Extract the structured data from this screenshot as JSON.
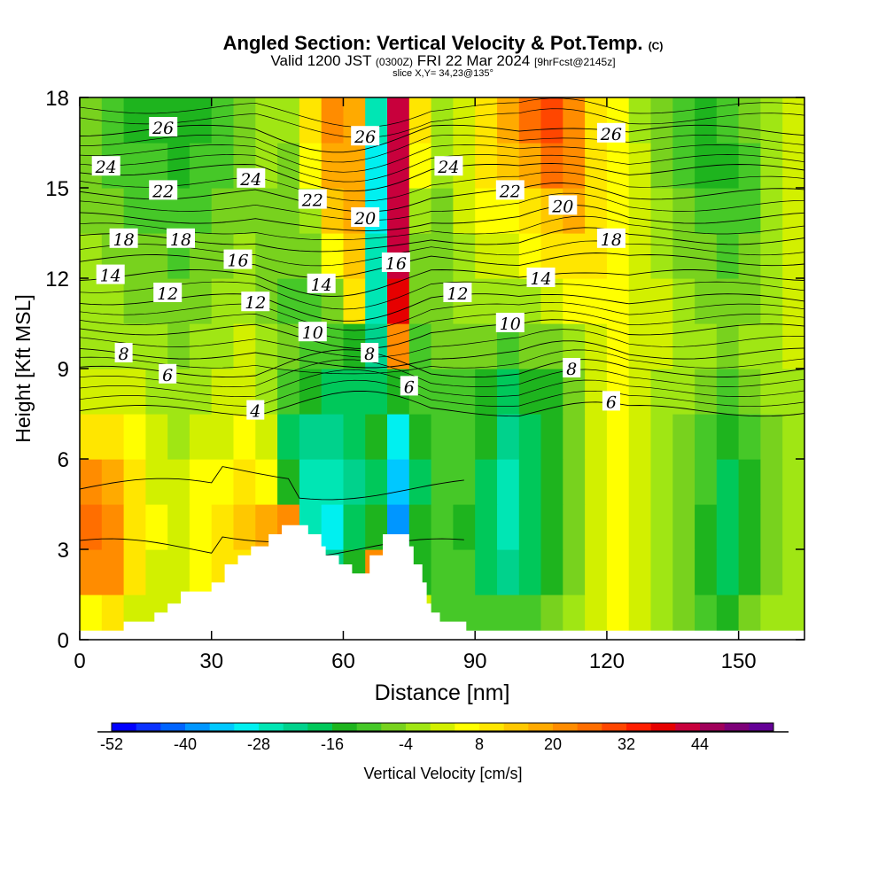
{
  "header": {
    "title": "Angled Section: Vertical Velocity & Pot.Temp.",
    "title_tag": "(C)",
    "valid_prefix": "Valid 1200 JST",
    "valid_z": "(0300Z)",
    "valid_date": "FRI 22 Mar 2024",
    "valid_fcst": "[9hrFcst@2145z]",
    "slice": "slice X,Y= 34,23@135°"
  },
  "chart_data": {
    "type": "heatmap",
    "xlabel": "Distance [nm]",
    "ylabel": "Height [Kft MSL]",
    "xlim": [
      0,
      165
    ],
    "ylim": [
      0,
      18
    ],
    "x_ticks": [
      0,
      30,
      60,
      90,
      120,
      150
    ],
    "y_ticks": [
      0,
      3,
      6,
      9,
      12,
      15,
      18
    ],
    "colorbar": {
      "title": "Vertical Velocity [cm/s]",
      "tick_labels": [
        "-52",
        "-40",
        "-28",
        "-16",
        "-4",
        "8",
        "20",
        "32",
        "44"
      ],
      "min": -52,
      "max": 56,
      "step": 4,
      "colors": [
        "#0000ff",
        "#0a32ff",
        "#0064ff",
        "#0096ff",
        "#00c8ff",
        "#00f0f0",
        "#00e6b4",
        "#00d28c",
        "#00c85a",
        "#1eb41e",
        "#46c828",
        "#78d21e",
        "#a0e614",
        "#d2f000",
        "#ffff00",
        "#ffe600",
        "#ffc800",
        "#ffaa00",
        "#ff8c00",
        "#ff6e00",
        "#ff4600",
        "#ff1e00",
        "#e60000",
        "#c8003c",
        "#a0005a",
        "#7d0078",
        "#640096"
      ]
    },
    "field_cells_cm_s": {
      "rows_height_kft": [
        0.75,
        2.25,
        3.75,
        5.25,
        6.75,
        8.25,
        9.75,
        11.25,
        12.75,
        14.25,
        15.75,
        17.25
      ],
      "cols_distance_nm": [
        2.5,
        7.5,
        12.5,
        17.5,
        22.5,
        27.5,
        32.5,
        37.5,
        42.5,
        47.5,
        52.5,
        57.5,
        62.5,
        67.5,
        72.5,
        77.5,
        82.5,
        87.5,
        92.5,
        97.5,
        102.5,
        107.5,
        112.5,
        117.5,
        122.5,
        127.5,
        132.5,
        137.5,
        142.5,
        147.5,
        152.5,
        157.5,
        162.5
      ],
      "values": [
        [
          4,
          8,
          0,
          0,
          2,
          4,
          6,
          8,
          10,
          8,
          2,
          -12,
          -14,
          4,
          22,
          0,
          -10,
          -10,
          -12,
          -12,
          -10,
          -8,
          -4,
          0,
          4,
          2,
          -2,
          -6,
          -10,
          -14,
          -8,
          -4,
          -2
        ],
        [
          20,
          22,
          8,
          2,
          2,
          4,
          8,
          10,
          14,
          16,
          -20,
          -24,
          -16,
          20,
          -40,
          -14,
          -10,
          -12,
          -18,
          -22,
          -18,
          -14,
          -6,
          2,
          4,
          0,
          -4,
          -8,
          -14,
          -20,
          -14,
          -6,
          -2
        ],
        [
          24,
          22,
          10,
          4,
          2,
          6,
          10,
          14,
          16,
          20,
          -28,
          -30,
          -20,
          -14,
          -40,
          -16,
          -10,
          -14,
          -20,
          -28,
          -20,
          -16,
          -8,
          2,
          4,
          0,
          -4,
          -8,
          -14,
          -20,
          -16,
          -8,
          -4
        ],
        [
          20,
          16,
          8,
          2,
          0,
          4,
          6,
          8,
          6,
          -14,
          -28,
          -28,
          -24,
          -18,
          -36,
          -18,
          -10,
          -12,
          -18,
          -26,
          -18,
          -14,
          -6,
          2,
          4,
          0,
          -4,
          -8,
          -12,
          -18,
          -14,
          -8,
          -4
        ],
        [
          10,
          8,
          4,
          0,
          -2,
          0,
          2,
          4,
          0,
          -18,
          -22,
          -24,
          -20,
          -16,
          -30,
          -16,
          -12,
          -12,
          -16,
          -24,
          -18,
          -14,
          -6,
          2,
          4,
          0,
          -2,
          -6,
          -10,
          -14,
          -12,
          -6,
          -4
        ],
        [
          0,
          0,
          0,
          -2,
          -4,
          -2,
          0,
          2,
          -2,
          -12,
          -16,
          -20,
          -18,
          -20,
          -14,
          -12,
          -10,
          -10,
          -14,
          -18,
          -16,
          -14,
          -6,
          2,
          4,
          0,
          -2,
          -4,
          -8,
          -10,
          -8,
          -4,
          -2
        ],
        [
          -2,
          -2,
          -4,
          -4,
          -6,
          -4,
          -2,
          0,
          -4,
          -8,
          -12,
          -10,
          -14,
          -24,
          20,
          -10,
          -8,
          -6,
          -8,
          -10,
          -8,
          -6,
          -2,
          2,
          4,
          2,
          0,
          -2,
          -4,
          -6,
          -4,
          -2,
          0
        ],
        [
          -4,
          -4,
          -6,
          -6,
          -8,
          -6,
          -4,
          -2,
          -6,
          -10,
          -10,
          -8,
          8,
          -26,
          36,
          -8,
          -6,
          -4,
          -4,
          -4,
          -2,
          0,
          4,
          6,
          4,
          2,
          0,
          -4,
          -6,
          -8,
          -6,
          -2,
          0
        ],
        [
          -4,
          -6,
          -8,
          -8,
          -10,
          -8,
          -6,
          -4,
          -6,
          -8,
          -8,
          6,
          12,
          -28,
          40,
          -6,
          -6,
          -2,
          0,
          2,
          4,
          8,
          10,
          8,
          4,
          2,
          -2,
          -6,
          -8,
          -10,
          -8,
          -4,
          0
        ],
        [
          -6,
          -8,
          -10,
          -10,
          -12,
          -10,
          -8,
          -6,
          -6,
          -8,
          -4,
          14,
          16,
          -30,
          40,
          -4,
          -6,
          0,
          4,
          6,
          10,
          14,
          16,
          10,
          4,
          0,
          -4,
          -8,
          -12,
          -12,
          -10,
          -4,
          0
        ],
        [
          -8,
          -10,
          -12,
          -12,
          -14,
          -12,
          -10,
          -8,
          -4,
          -6,
          4,
          18,
          18,
          -30,
          40,
          4,
          -4,
          2,
          8,
          12,
          18,
          24,
          20,
          10,
          4,
          0,
          -6,
          -10,
          -14,
          -14,
          -10,
          -4,
          0
        ],
        [
          -8,
          -12,
          -14,
          -14,
          -16,
          -14,
          -10,
          -8,
          -4,
          -4,
          8,
          20,
          16,
          -28,
          40,
          10,
          -2,
          2,
          10,
          16,
          24,
          28,
          22,
          10,
          4,
          -2,
          -8,
          -12,
          -14,
          -12,
          -8,
          -4,
          0
        ]
      ]
    },
    "terrain_kft": [
      [
        0,
        0.3
      ],
      [
        10,
        0.3
      ],
      [
        10,
        0.6
      ],
      [
        17,
        0.6
      ],
      [
        17,
        0.9
      ],
      [
        20,
        0.9
      ],
      [
        20,
        1.2
      ],
      [
        23,
        1.2
      ],
      [
        23,
        1.6
      ],
      [
        30,
        1.6
      ],
      [
        30,
        1.9
      ],
      [
        33,
        1.9
      ],
      [
        33,
        2.5
      ],
      [
        36,
        2.5
      ],
      [
        36,
        2.8
      ],
      [
        39,
        2.8
      ],
      [
        39,
        3.1
      ],
      [
        43,
        3.1
      ],
      [
        43,
        3.5
      ],
      [
        46,
        3.5
      ],
      [
        46,
        3.8
      ],
      [
        52,
        3.8
      ],
      [
        52,
        3.5
      ],
      [
        55,
        3.5
      ],
      [
        55,
        3.1
      ],
      [
        56,
        3.1
      ],
      [
        56,
        2.8
      ],
      [
        59,
        2.8
      ],
      [
        59,
        2.5
      ],
      [
        62,
        2.5
      ],
      [
        62,
        2.2
      ],
      [
        66,
        2.2
      ],
      [
        66,
        2.8
      ],
      [
        69,
        2.8
      ],
      [
        69,
        3.5
      ],
      [
        75,
        3.5
      ],
      [
        75,
        3.1
      ],
      [
        76,
        3.1
      ],
      [
        76,
        2.5
      ],
      [
        78,
        2.5
      ],
      [
        78,
        1.9
      ],
      [
        79,
        1.9
      ],
      [
        79,
        1.2
      ],
      [
        80,
        1.2
      ],
      [
        80,
        0.9
      ],
      [
        82,
        0.9
      ],
      [
        82,
        0.6
      ],
      [
        88,
        0.6
      ],
      [
        88,
        0.3
      ],
      [
        165,
        0.3
      ]
    ],
    "theta_contours": [
      {
        "label": "4",
        "base_kft": 7.6,
        "label_points": [
          [
            40,
            7.6
          ]
        ]
      },
      {
        "label": "6",
        "base_kft": 8.9,
        "label_points": [
          [
            20,
            8.8
          ],
          [
            75,
            8.4
          ],
          [
            121,
            7.9
          ]
        ]
      },
      {
        "label": "8",
        "base_kft": 9.5,
        "label_points": [
          [
            10,
            9.5
          ],
          [
            66,
            9.5
          ],
          [
            112,
            9.0
          ]
        ]
      },
      {
        "label": "10",
        "base_kft": 10.3,
        "label_points": [
          [
            53,
            10.2
          ],
          [
            98,
            10.5
          ]
        ]
      },
      {
        "label": "12",
        "base_kft": 11.3,
        "label_points": [
          [
            20,
            11.5
          ],
          [
            40,
            11.2
          ],
          [
            86,
            11.5
          ]
        ]
      },
      {
        "label": "14",
        "base_kft": 12.1,
        "label_points": [
          [
            7,
            12.1
          ],
          [
            55,
            11.8
          ],
          [
            105,
            12.0
          ]
        ]
      },
      {
        "label": "16",
        "base_kft": 12.6,
        "label_points": [
          [
            36,
            12.6
          ],
          [
            72,
            12.5
          ]
        ]
      },
      {
        "label": "18",
        "base_kft": 13.3,
        "label_points": [
          [
            10,
            13.3
          ],
          [
            23,
            13.3
          ],
          [
            121,
            13.3
          ]
        ]
      },
      {
        "label": "20",
        "base_kft": 14.0,
        "label_points": [
          [
            65,
            14.0
          ],
          [
            110,
            14.4
          ]
        ]
      },
      {
        "label": "22",
        "base_kft": 14.8,
        "label_points": [
          [
            19,
            14.9
          ],
          [
            53,
            14.6
          ],
          [
            98,
            14.9
          ]
        ]
      },
      {
        "label": "24",
        "base_kft": 15.6,
        "label_points": [
          [
            6,
            15.7
          ],
          [
            39,
            15.3
          ],
          [
            84,
            15.7
          ]
        ]
      },
      {
        "label": "26",
        "base_kft": 16.9,
        "label_points": [
          [
            19,
            17.0
          ],
          [
            65,
            16.7
          ],
          [
            121,
            16.8
          ]
        ]
      }
    ],
    "low_contours_kft": [
      {
        "base_kft": 5.0
      },
      {
        "base_kft": 3.0
      }
    ]
  }
}
